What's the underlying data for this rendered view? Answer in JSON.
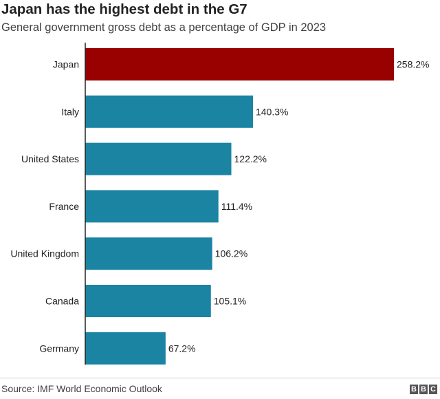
{
  "header": {
    "title": "Japan has the highest debt in the G7",
    "subtitle": "General government gross debt as a percentage of GDP in 2023"
  },
  "footer": {
    "source": "Source: IMF World Economic Outlook",
    "logo_text": "BBC"
  },
  "colors": {
    "highlight": "#990000",
    "bar": "#1a84a2",
    "axis": "#222222"
  },
  "chart_data": {
    "type": "bar",
    "orientation": "horizontal",
    "title": "Japan has the highest debt in the G7",
    "subtitle": "General government gross debt as a percentage of GDP in 2023",
    "xlabel": "",
    "ylabel": "",
    "xlim": [
      0,
      258.2
    ],
    "grid": false,
    "unit_suffix": "%",
    "categories": [
      "Japan",
      "Italy",
      "United States",
      "France",
      "United Kingdom",
      "Canada",
      "Germany"
    ],
    "values": [
      258.2,
      140.3,
      122.2,
      111.4,
      106.2,
      105.1,
      67.2
    ],
    "value_labels": [
      "258.2%",
      "140.3%",
      "122.2%",
      "111.4%",
      "106.2%",
      "105.1%",
      "67.2%"
    ],
    "highlighted_category": "Japan"
  }
}
